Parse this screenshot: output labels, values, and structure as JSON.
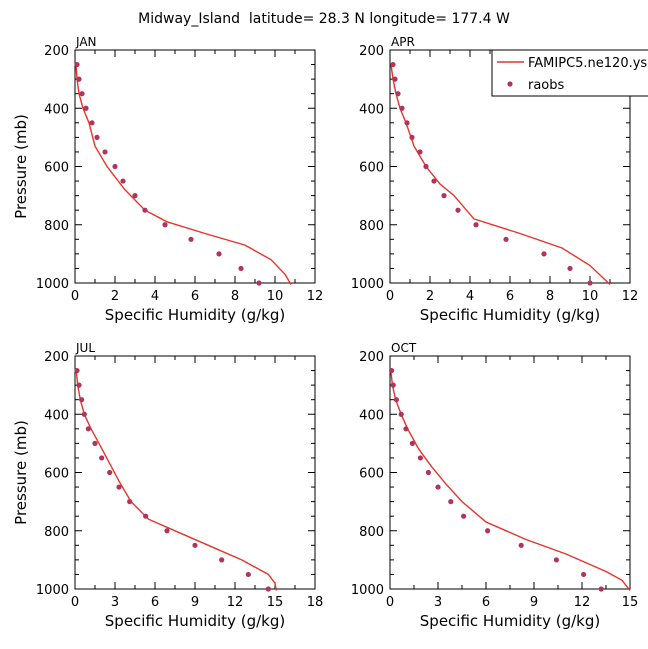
{
  "title": "Midway_Island  latitude= 28.3 N longitude= 177.4 W",
  "colors": {
    "model": "#e8332a",
    "obs": "#b0345c",
    "axis": "#000000"
  },
  "legend": {
    "model_label": "FAMIPC5.ne120.ys",
    "obs_label": "raobs"
  },
  "chart_data": [
    {
      "type": "line",
      "panel": "JAN",
      "xlabel": "Specific Humidity (g/kg)",
      "ylabel": "Pressure (mb)",
      "xlim": [
        0,
        12
      ],
      "ylim": [
        1000,
        200
      ],
      "xticks": [
        0,
        2,
        4,
        6,
        8,
        10,
        12
      ],
      "yticks": [
        200,
        400,
        600,
        800,
        1000
      ],
      "series": [
        {
          "name": "FAMIPC5.ne120.ys",
          "x": [
            0.05,
            0.1,
            0.2,
            0.4,
            0.7,
            1.0,
            1.6,
            2.5,
            3.5,
            4.6,
            6.5,
            8.5,
            9.8,
            10.5,
            10.8
          ],
          "y": [
            250,
            300,
            350,
            400,
            450,
            530,
            600,
            680,
            750,
            790,
            830,
            870,
            920,
            970,
            1005
          ]
        },
        {
          "name": "raobs",
          "x": [
            0.1,
            0.2,
            0.35,
            0.55,
            0.85,
            1.1,
            1.5,
            2.0,
            2.4,
            3.0,
            3.5,
            4.5,
            5.8,
            7.2,
            8.3,
            9.2
          ],
          "y": [
            250,
            300,
            350,
            400,
            450,
            500,
            550,
            600,
            650,
            700,
            750,
            800,
            850,
            900,
            950,
            1000
          ]
        }
      ]
    },
    {
      "type": "line",
      "panel": "APR",
      "xlabel": "Specific Humidity (g/kg)",
      "ylabel": "",
      "xlim": [
        0,
        12
      ],
      "ylim": [
        1000,
        200
      ],
      "xticks": [
        0,
        2,
        4,
        6,
        8,
        10,
        12
      ],
      "yticks": [
        200,
        400,
        600,
        800,
        1000
      ],
      "series": [
        {
          "name": "FAMIPC5.ne120.ys",
          "x": [
            0.05,
            0.15,
            0.3,
            0.5,
            0.8,
            1.2,
            1.8,
            2.5,
            3.2,
            4.2,
            6.5,
            8.6,
            10.0,
            11.0
          ],
          "y": [
            250,
            300,
            350,
            400,
            450,
            530,
            600,
            660,
            700,
            780,
            830,
            880,
            940,
            1005
          ]
        },
        {
          "name": "raobs",
          "x": [
            0.15,
            0.25,
            0.4,
            0.6,
            0.85,
            1.1,
            1.5,
            1.8,
            2.2,
            2.7,
            3.4,
            4.3,
            5.8,
            7.7,
            9.0,
            10.0
          ],
          "y": [
            250,
            300,
            350,
            400,
            450,
            500,
            550,
            600,
            650,
            700,
            750,
            800,
            850,
            900,
            950,
            1000
          ]
        }
      ]
    },
    {
      "type": "line",
      "panel": "JUL",
      "xlabel": "Specific Humidity (g/kg)",
      "ylabel": "Pressure (mb)",
      "xlim": [
        0,
        18
      ],
      "ylim": [
        1000,
        200
      ],
      "xticks": [
        0,
        3,
        6,
        9,
        12,
        15,
        18
      ],
      "yticks": [
        200,
        400,
        600,
        800,
        1000
      ],
      "series": [
        {
          "name": "FAMIPC5.ne120.ys",
          "x": [
            0.1,
            0.2,
            0.4,
            0.7,
            1.2,
            1.8,
            2.5,
            3.3,
            4.2,
            5.5,
            7.5,
            10.0,
            12.5,
            14.5,
            15.0,
            15.1
          ],
          "y": [
            250,
            300,
            350,
            400,
            450,
            500,
            560,
            630,
            700,
            760,
            800,
            850,
            900,
            950,
            980,
            1005
          ]
        },
        {
          "name": "raobs",
          "x": [
            0.15,
            0.3,
            0.5,
            0.7,
            1.0,
            1.5,
            2.0,
            2.6,
            3.3,
            4.1,
            5.3,
            6.9,
            9.0,
            11.0,
            13.0,
            14.5
          ],
          "y": [
            250,
            300,
            350,
            400,
            450,
            500,
            550,
            600,
            650,
            700,
            750,
            800,
            850,
            900,
            950,
            1000
          ]
        }
      ]
    },
    {
      "type": "line",
      "panel": "OCT",
      "xlabel": "Specific Humidity (g/kg)",
      "ylabel": "",
      "xlim": [
        0,
        15
      ],
      "ylim": [
        1000,
        200
      ],
      "xticks": [
        0,
        3,
        6,
        9,
        12,
        15
      ],
      "yticks": [
        200,
        400,
        600,
        800,
        1000
      ],
      "series": [
        {
          "name": "FAMIPC5.ne120.ys",
          "x": [
            0.05,
            0.15,
            0.35,
            0.7,
            1.1,
            1.8,
            2.6,
            3.5,
            4.5,
            6.0,
            8.5,
            11.0,
            13.5,
            14.5,
            15.0
          ],
          "y": [
            250,
            300,
            350,
            400,
            450,
            520,
            580,
            640,
            700,
            770,
            830,
            880,
            940,
            970,
            1005
          ]
        },
        {
          "name": "raobs",
          "x": [
            0.1,
            0.2,
            0.4,
            0.7,
            1.0,
            1.4,
            1.9,
            2.4,
            3.0,
            3.8,
            4.6,
            6.1,
            8.2,
            10.4,
            12.1,
            13.2
          ],
          "y": [
            250,
            300,
            350,
            400,
            450,
            500,
            550,
            600,
            650,
            700,
            750,
            800,
            850,
            900,
            950,
            1000
          ]
        }
      ]
    }
  ]
}
